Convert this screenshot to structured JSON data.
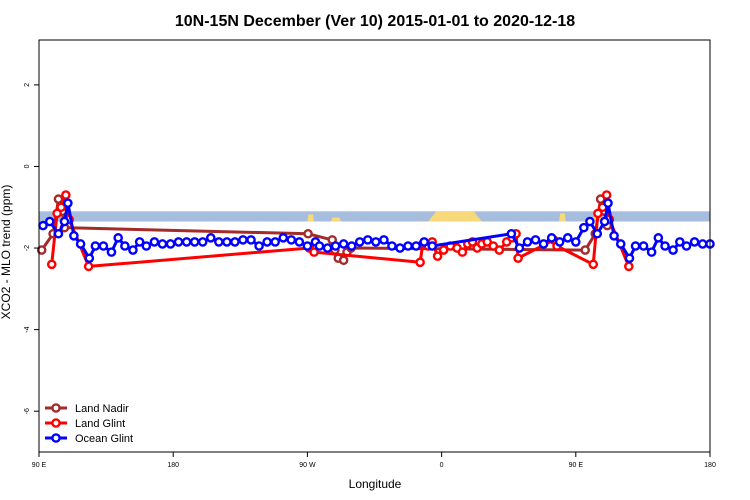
{
  "chart_data": {
    "type": "line",
    "title": "10N-15N December (Ver 10)   2015-01-01 to 2020-12-18",
    "xlabel": "Longitude",
    "ylabel": "XCO2 - MLO trend (ppm)",
    "xlim": [
      0,
      100
    ],
    "ylim": [
      -7,
      3.1
    ],
    "x_ticks": [
      {
        "value": 0,
        "label": "90 E"
      },
      {
        "value": 20,
        "label": "180"
      },
      {
        "value": 40,
        "label": "90 W"
      },
      {
        "value": 60,
        "label": "0"
      },
      {
        "value": 80,
        "label": "90 E"
      },
      {
        "value": 100,
        "label": "180"
      }
    ],
    "y_ticks": [
      {
        "value": 2,
        "label": "2"
      },
      {
        "value": 0,
        "label": "0"
      },
      {
        "value": -2,
        "label": "-2"
      },
      {
        "value": -4,
        "label": "-4"
      },
      {
        "value": -6,
        "label": "-6"
      }
    ],
    "background_band": {
      "y_from": -1.1,
      "y_to": -1.35,
      "color": "#a7bddd",
      "land_color": "#f7d87a"
    },
    "legend_position": "bottom-left",
    "series": [
      {
        "name": "Land Nadir",
        "color": "#a52a2a",
        "points": [
          [
            0.4,
            -2.05
          ],
          [
            2.1,
            -1.65
          ],
          [
            2.9,
            -0.8
          ],
          [
            3.5,
            -1.1
          ],
          [
            3.8,
            -1.5
          ],
          [
            40.1,
            -1.65
          ],
          [
            43.7,
            -1.8
          ],
          [
            44.1,
            -2.05
          ],
          [
            44.6,
            -2.25
          ],
          [
            45.4,
            -2.3
          ],
          [
            45.9,
            -2.1
          ],
          [
            46.5,
            -2.0
          ],
          [
            81.4,
            -2.05
          ],
          [
            82.9,
            -1.65
          ],
          [
            83.7,
            -0.8
          ],
          [
            84.3,
            -1.1
          ],
          [
            84.7,
            -1.45
          ]
        ]
      },
      {
        "name": "Land Glint",
        "color": "#ff0000",
        "points": [
          [
            1.9,
            -2.4
          ],
          [
            2.7,
            -1.15
          ],
          [
            3.3,
            -1.0
          ],
          [
            4.0,
            -0.7
          ],
          [
            4.5,
            -1.3
          ],
          [
            7.4,
            -2.45
          ],
          [
            40.3,
            -2.0
          ],
          [
            41.0,
            -2.1
          ],
          [
            56.8,
            -2.35
          ],
          [
            57.2,
            -1.9
          ],
          [
            58.0,
            -1.95
          ],
          [
            58.6,
            -1.85
          ],
          [
            59.4,
            -2.2
          ],
          [
            60.3,
            -2.05
          ],
          [
            61.3,
            -1.95
          ],
          [
            62.3,
            -2.0
          ],
          [
            63.1,
            -2.1
          ],
          [
            63.9,
            -1.9
          ],
          [
            64.6,
            -1.85
          ],
          [
            65.3,
            -2.0
          ],
          [
            66.0,
            -1.9
          ],
          [
            66.8,
            -1.85
          ],
          [
            67.7,
            -1.95
          ],
          [
            68.6,
            -2.05
          ],
          [
            69.7,
            -1.85
          ],
          [
            70.5,
            -1.75
          ],
          [
            71.1,
            -1.65
          ],
          [
            71.4,
            -2.25
          ],
          [
            76.7,
            -1.8
          ],
          [
            77.2,
            -1.95
          ],
          [
            82.6,
            -2.4
          ],
          [
            83.3,
            -1.15
          ],
          [
            84.0,
            -1.0
          ],
          [
            84.6,
            -0.7
          ],
          [
            85.0,
            -1.3
          ],
          [
            87.9,
            -2.45
          ]
        ]
      },
      {
        "name": "Ocean Glint",
        "color": "#0000ff",
        "points": [
          [
            0.6,
            -1.45
          ],
          [
            1.6,
            -1.35
          ],
          [
            2.9,
            -1.65
          ],
          [
            3.8,
            -1.35
          ],
          [
            4.3,
            -0.9
          ],
          [
            5.2,
            -1.7
          ],
          [
            6.2,
            -1.9
          ],
          [
            7.5,
            -2.25
          ],
          [
            8.4,
            -1.95
          ],
          [
            9.6,
            -1.95
          ],
          [
            10.8,
            -2.1
          ],
          [
            11.8,
            -1.75
          ],
          [
            12.8,
            -1.95
          ],
          [
            14.0,
            -2.05
          ],
          [
            15.0,
            -1.85
          ],
          [
            16.0,
            -1.95
          ],
          [
            17.2,
            -1.85
          ],
          [
            18.4,
            -1.9
          ],
          [
            19.6,
            -1.9
          ],
          [
            20.8,
            -1.85
          ],
          [
            22.0,
            -1.85
          ],
          [
            23.2,
            -1.85
          ],
          [
            24.4,
            -1.85
          ],
          [
            25.6,
            -1.75
          ],
          [
            26.8,
            -1.85
          ],
          [
            28.0,
            -1.85
          ],
          [
            29.2,
            -1.85
          ],
          [
            30.4,
            -1.8
          ],
          [
            31.6,
            -1.8
          ],
          [
            32.8,
            -1.95
          ],
          [
            34.0,
            -1.85
          ],
          [
            35.2,
            -1.85
          ],
          [
            36.4,
            -1.75
          ],
          [
            37.6,
            -1.8
          ],
          [
            38.8,
            -1.85
          ],
          [
            40.0,
            -1.95
          ],
          [
            41.2,
            -1.85
          ],
          [
            41.8,
            -1.95
          ],
          [
            43.0,
            -2.0
          ],
          [
            44.2,
            -1.95
          ],
          [
            45.4,
            -1.9
          ],
          [
            46.6,
            -1.95
          ],
          [
            47.8,
            -1.85
          ],
          [
            49.0,
            -1.8
          ],
          [
            50.2,
            -1.85
          ],
          [
            51.4,
            -1.8
          ],
          [
            52.6,
            -1.95
          ],
          [
            53.8,
            -2.0
          ],
          [
            55.0,
            -1.95
          ],
          [
            56.2,
            -1.95
          ],
          [
            57.4,
            -1.85
          ],
          [
            58.6,
            -1.95
          ],
          [
            70.4,
            -1.65
          ],
          [
            71.6,
            -2.0
          ],
          [
            72.8,
            -1.85
          ],
          [
            74.0,
            -1.8
          ],
          [
            75.2,
            -1.9
          ],
          [
            76.4,
            -1.75
          ],
          [
            77.6,
            -1.85
          ],
          [
            78.8,
            -1.75
          ],
          [
            80.0,
            -1.85
          ],
          [
            81.2,
            -1.5
          ],
          [
            82.1,
            -1.35
          ],
          [
            83.2,
            -1.65
          ],
          [
            84.3,
            -1.35
          ],
          [
            84.8,
            -0.9
          ],
          [
            85.7,
            -1.7
          ],
          [
            86.7,
            -1.9
          ],
          [
            88.0,
            -2.25
          ],
          [
            88.9,
            -1.95
          ],
          [
            90.1,
            -1.95
          ],
          [
            91.3,
            -2.1
          ],
          [
            92.3,
            -1.75
          ],
          [
            93.3,
            -1.95
          ],
          [
            94.5,
            -2.05
          ],
          [
            95.5,
            -1.85
          ],
          [
            96.5,
            -1.95
          ],
          [
            97.7,
            -1.85
          ],
          [
            98.9,
            -1.9
          ],
          [
            100.0,
            -1.9
          ]
        ]
      }
    ]
  }
}
